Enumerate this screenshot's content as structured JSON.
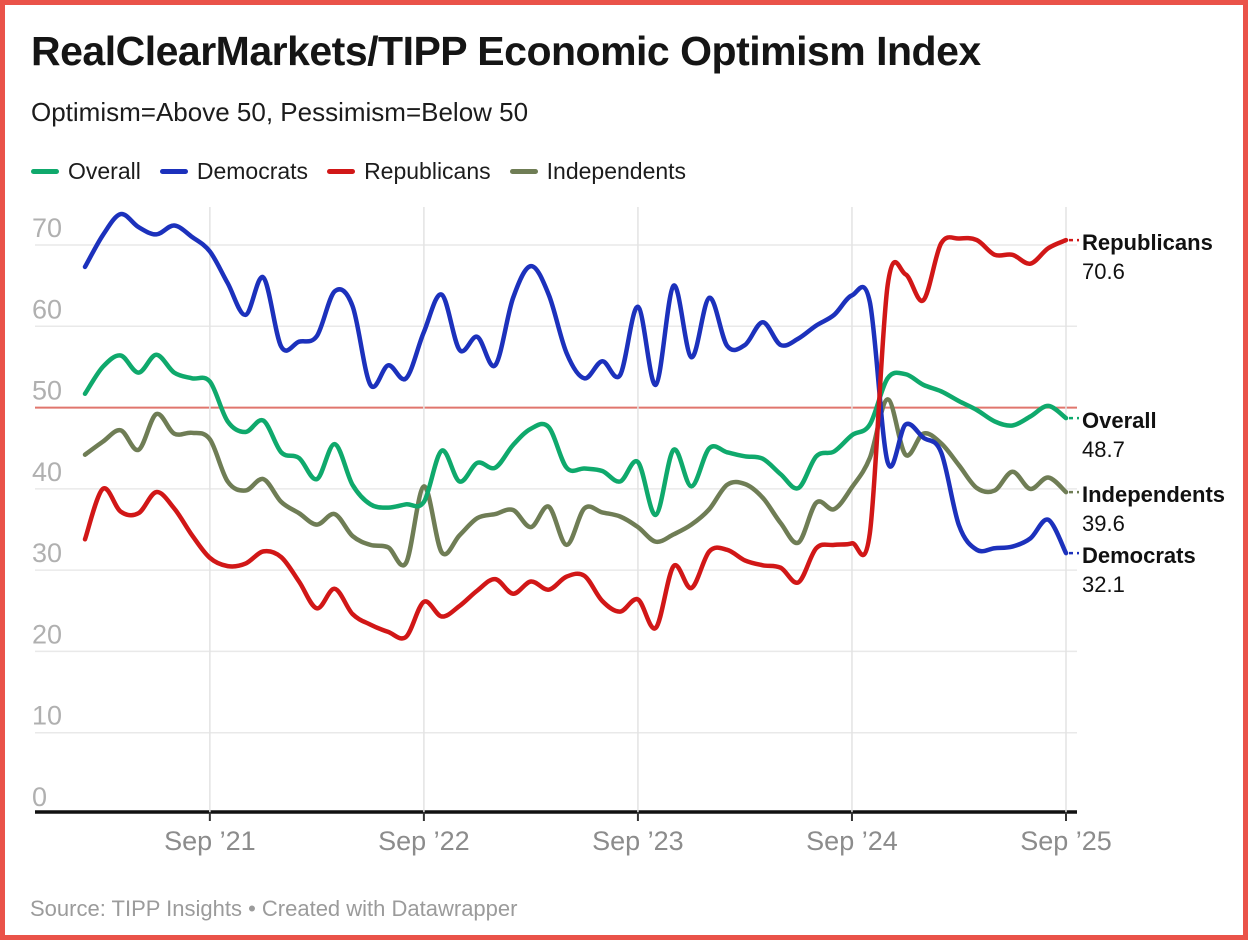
{
  "frame": {
    "border_color": "#ea5349",
    "background": "#ffffff"
  },
  "header": {
    "title": "RealClearMarkets/TIPP Economic Optimism Index",
    "subtitle": "Optimism=Above 50, Pessimism=Below 50"
  },
  "footer": {
    "source": "Source: TIPP Insights • Created with Datawrapper"
  },
  "chart_data": {
    "type": "line",
    "title": "RealClearMarkets/TIPP Economic Optimism Index",
    "subtitle": "Optimism=Above 50, Pessimism=Below 50",
    "x_unit": "monthly, Feb 2021 through Sep 2025",
    "x_axis_ticks": [
      "Sep ’21",
      "Sep ’22",
      "Sep ’23",
      "Sep ’24",
      "Sep ’25"
    ],
    "x_axis_tick_indices": [
      7,
      19,
      31,
      43,
      55
    ],
    "y_ticks": [
      0,
      10,
      20,
      30,
      40,
      50,
      60,
      70
    ],
    "ylim": [
      0,
      74
    ],
    "grid": true,
    "legend_position": "top-left",
    "reference_line": {
      "value": 50,
      "color": "#e0766d",
      "meaning": "Optimism above 50, pessimism below 50"
    },
    "colors": {
      "grid": "#e9e9e9",
      "vgrid": "#e3e3e3",
      "axis": "#111111",
      "y_tick_text": "#b0b0b0",
      "x_tick_text": "#8c8c8c"
    },
    "series": [
      {
        "name": "Overall",
        "color": "#0fa96c",
        "end_value": "48.7",
        "values": [
          51.7,
          55.0,
          56.4,
          54.3,
          56.5,
          54.3,
          53.6,
          53.2,
          48.3,
          47.0,
          48.4,
          44.5,
          43.8,
          41.2,
          45.5,
          40.5,
          38.1,
          37.7,
          38.1,
          38.4,
          44.7,
          40.9,
          43.2,
          42.6,
          45.4,
          47.4,
          47.6,
          42.6,
          42.5,
          42.2,
          40.9,
          43.3,
          36.8,
          44.8,
          40.3,
          45.0,
          44.5,
          44.0,
          43.7,
          41.8,
          40.1,
          44.0,
          44.6,
          46.6,
          47.9,
          53.6,
          54.1,
          52.8,
          52.0,
          50.8,
          49.7,
          48.3,
          47.8,
          48.9,
          50.2,
          48.7
        ]
      },
      {
        "name": "Democrats",
        "color": "#1c31bc",
        "end_value": "32.1",
        "values": [
          67.3,
          71.2,
          73.8,
          72.2,
          71.3,
          72.4,
          71.0,
          69.2,
          65.3,
          61.4,
          66.0,
          57.5,
          58.1,
          58.8,
          64.3,
          62.5,
          52.8,
          55.2,
          53.6,
          59.3,
          63.9,
          57.1,
          58.7,
          55.2,
          63.5,
          67.4,
          63.9,
          56.7,
          53.6,
          55.7,
          54.0,
          62.4,
          52.8,
          65.0,
          56.2,
          63.5,
          57.6,
          57.7,
          60.5,
          57.7,
          58.5,
          60.1,
          61.4,
          63.8,
          63.0,
          43.3,
          47.9,
          46.3,
          44.5,
          35.5,
          32.5,
          32.7,
          32.9,
          33.9,
          36.2,
          32.1
        ]
      },
      {
        "name": "Republicans",
        "color": "#d11717",
        "end_value": "70.6",
        "values": [
          33.8,
          40.0,
          37.2,
          37.0,
          39.6,
          37.6,
          34.3,
          31.5,
          30.5,
          30.8,
          32.3,
          31.6,
          28.6,
          25.3,
          27.7,
          24.6,
          23.3,
          22.4,
          21.8,
          26.1,
          24.3,
          25.6,
          27.5,
          28.9,
          27.1,
          28.6,
          27.6,
          29.2,
          29.3,
          26.2,
          24.9,
          26.4,
          22.9,
          30.5,
          27.8,
          32.3,
          32.5,
          31.2,
          30.6,
          30.3,
          28.5,
          32.7,
          33.1,
          33.3,
          34.5,
          65.0,
          66.4,
          63.2,
          70.2,
          70.8,
          70.6,
          68.8,
          68.8,
          67.7,
          69.6,
          70.6
        ]
      },
      {
        "name": "Independents",
        "color": "#6f7d55",
        "end_value": "39.6",
        "values": [
          44.2,
          45.8,
          47.2,
          44.8,
          49.2,
          46.8,
          46.9,
          46.1,
          40.9,
          39.8,
          41.2,
          38.4,
          37.0,
          35.6,
          36.9,
          34.2,
          33.1,
          32.8,
          30.9,
          40.3,
          32.2,
          34.3,
          36.4,
          36.9,
          37.4,
          35.3,
          37.8,
          33.1,
          37.6,
          37.1,
          36.6,
          35.3,
          33.5,
          34.4,
          35.6,
          37.5,
          40.5,
          40.6,
          38.9,
          35.8,
          33.4,
          38.3,
          37.5,
          40.2,
          43.8,
          51.0,
          44.2,
          46.8,
          45.6,
          42.9,
          40.1,
          39.8,
          42.1,
          40.0,
          41.4,
          39.6
        ]
      }
    ]
  },
  "legend": {
    "items": [
      {
        "label": "Overall"
      },
      {
        "label": "Democrats"
      },
      {
        "label": "Republicans"
      },
      {
        "label": "Independents"
      }
    ]
  }
}
